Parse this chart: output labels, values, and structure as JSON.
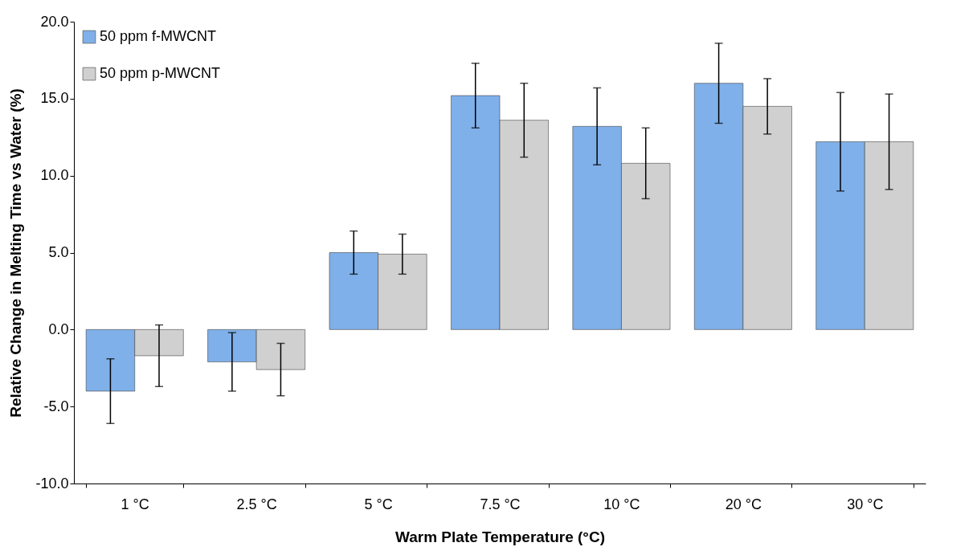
{
  "chart_data": {
    "type": "bar",
    "xlabel": "Warm Plate Temperature (°C)",
    "ylabel": "Relative Change in Melting Time vs Water (%)",
    "categories": [
      "1 °C",
      "2.5 °C",
      "5 °C",
      "7.5 °C",
      "10 °C",
      "20 °C",
      "30 °C"
    ],
    "series": [
      {
        "name": "50 ppm f-MWCNT",
        "color": "#7fb0ea",
        "values": [
          -4.0,
          -2.1,
          5.0,
          15.2,
          13.2,
          16.0,
          12.2
        ],
        "errors": [
          2.1,
          1.9,
          1.4,
          2.1,
          2.5,
          2.6,
          3.2
        ]
      },
      {
        "name": "50 ppm p-MWCNT",
        "color": "#d0d0d0",
        "values": [
          -1.7,
          -2.6,
          4.9,
          13.6,
          10.8,
          14.5,
          12.2
        ],
        "errors": [
          2.0,
          1.7,
          1.3,
          2.4,
          2.3,
          1.8,
          3.1
        ]
      }
    ],
    "ylim": [
      -10,
      20
    ],
    "yticks": [
      {
        "value": -10,
        "label": "-10.0"
      },
      {
        "value": -5,
        "label": "-5.0"
      },
      {
        "value": 0,
        "label": "0.0"
      },
      {
        "value": 5,
        "label": "5.0"
      },
      {
        "value": 10,
        "label": "10.0"
      },
      {
        "value": 15,
        "label": "15.0"
      },
      {
        "value": 20,
        "label": "20.0"
      }
    ],
    "legend": "top left",
    "grid": false
  }
}
